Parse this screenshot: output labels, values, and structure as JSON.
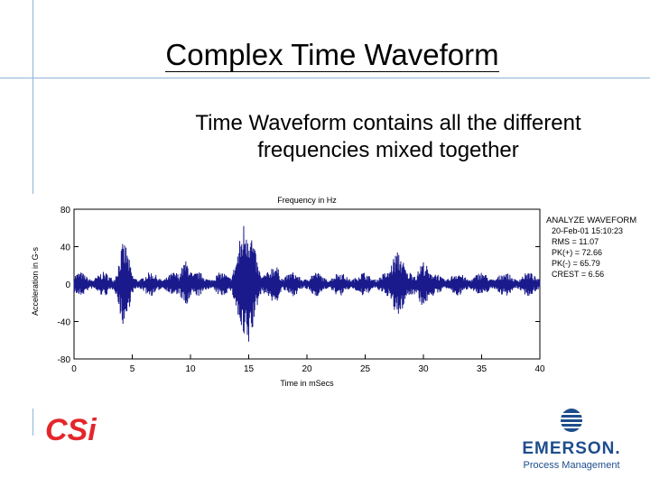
{
  "slide": {
    "title": "Complex Time Waveform",
    "subtitle": "Time Waveform contains all the different frequencies mixed together"
  },
  "chart_data": {
    "type": "line",
    "title": "Frequency in Hz",
    "xlabel": "Time in mSecs",
    "ylabel": "Acceleration in G-s",
    "xlim": [
      0,
      40
    ],
    "ylim": [
      -80,
      80
    ],
    "x_ticks": [
      "0",
      "5",
      "10",
      "15",
      "20",
      "25",
      "30",
      "35",
      "40"
    ],
    "y_ticks": [
      "80",
      "40",
      "0",
      "-40",
      "-80"
    ],
    "series_color": "#1a1a8c",
    "waveform_envelope": {
      "description_points_x": [
        0,
        4.3,
        10,
        14.8,
        17.5,
        23,
        27.8,
        30,
        34,
        39.5,
        40
      ],
      "peak_amplitude": [
        10,
        45,
        22,
        72,
        18,
        20,
        35,
        18,
        18,
        15,
        12
      ]
    },
    "stats_panel": {
      "heading": "ANALYZE WAVEFORM",
      "lines": [
        "20-Feb-01  15:10:23",
        "RMS =  11.07",
        "PK(+) =  72.66",
        "PK(-) =  65.79",
        "CREST = 6.56"
      ]
    }
  },
  "logos": {
    "left": "CSi",
    "right_name": "EMERSON.",
    "right_sub": "Process Management"
  }
}
